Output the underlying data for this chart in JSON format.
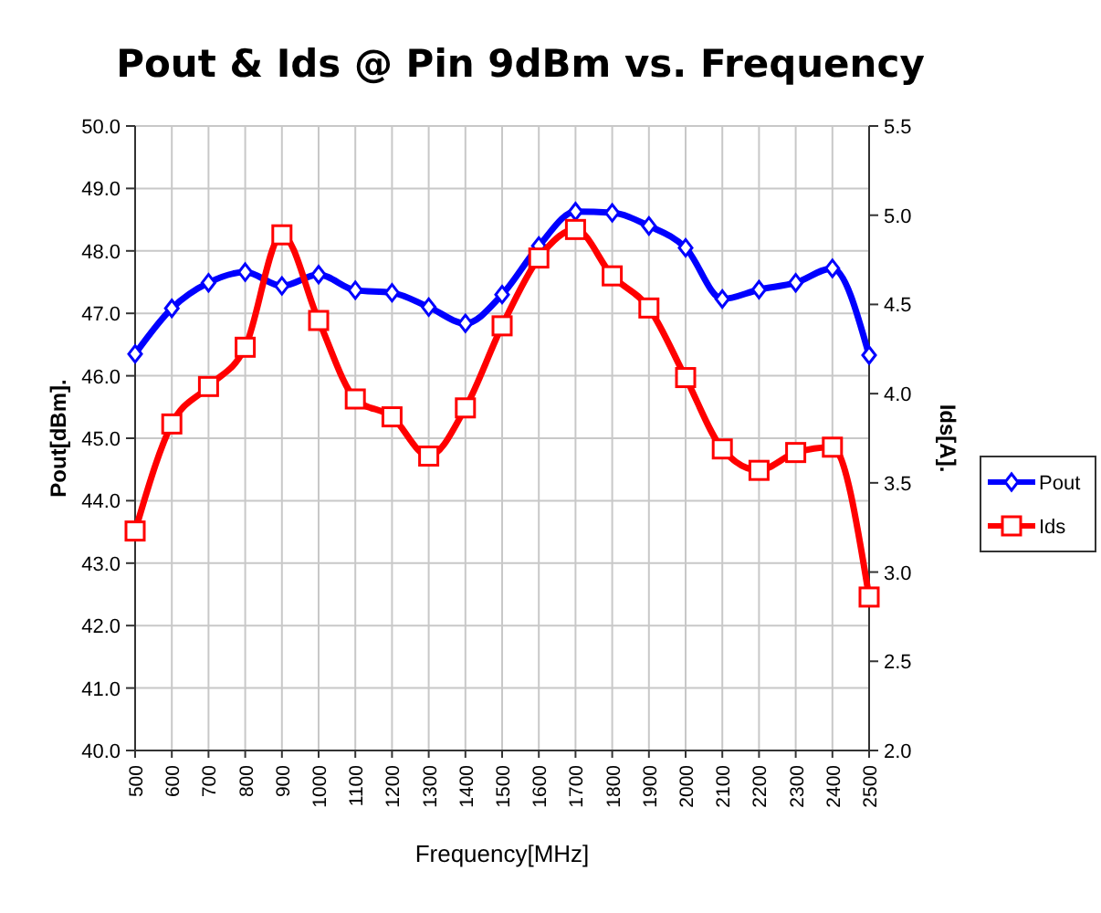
{
  "chart_data": {
    "type": "line",
    "title": "Pout & Ids @ Pin 9dBm vs. Frequency",
    "xlabel": "Frequency[MHz]",
    "ylabel": "Pout[dBm].",
    "y2label": "Ids[A].",
    "categories": [
      "500",
      "600",
      "700",
      "800",
      "900",
      "1000",
      "1100",
      "1200",
      "1300",
      "1400",
      "1500",
      "1600",
      "1700",
      "1800",
      "1900",
      "2000",
      "2100",
      "2200",
      "2300",
      "2400",
      "2500"
    ],
    "series": [
      {
        "name": "Pout",
        "color": "#0000ff",
        "marker": "diamond",
        "values": [
          46.35,
          47.08,
          47.49,
          47.66,
          47.44,
          47.62,
          47.37,
          47.33,
          47.1,
          46.84,
          47.3,
          48.08,
          48.63,
          48.61,
          48.4,
          48.05,
          47.23,
          47.38,
          47.49,
          47.72,
          46.33
        ]
      },
      {
        "name": "Ids",
        "color": "#ff0000",
        "marker": "square",
        "axis": "y2",
        "values": [
          3.23,
          3.83,
          4.04,
          4.26,
          4.89,
          4.41,
          3.97,
          3.87,
          3.65,
          3.92,
          4.38,
          4.76,
          4.92,
          4.66,
          4.48,
          4.09,
          3.69,
          3.57,
          3.67,
          3.7,
          2.86
        ]
      }
    ],
    "ylim": [
      40,
      50
    ],
    "yticks": [
      {
        "value": 40,
        "label": "40.0"
      },
      {
        "value": 41,
        "label": "41.0"
      },
      {
        "value": 42,
        "label": "42.0"
      },
      {
        "value": 43,
        "label": "43.0"
      },
      {
        "value": 44,
        "label": "44.0"
      },
      {
        "value": 45,
        "label": "45.0"
      },
      {
        "value": 46,
        "label": "46.0"
      },
      {
        "value": 47,
        "label": "47.0"
      },
      {
        "value": 48,
        "label": "48.0"
      },
      {
        "value": 49,
        "label": "49.0"
      },
      {
        "value": 50,
        "label": "50.0"
      }
    ],
    "y2lim": [
      2,
      5.5
    ],
    "y2ticks": [
      {
        "value": 2,
        "label": "2.0"
      },
      {
        "value": 2.5,
        "label": "2.5"
      },
      {
        "value": 3,
        "label": "3.0"
      },
      {
        "value": 3.5,
        "label": "3.5"
      },
      {
        "value": 4,
        "label": "4.0"
      },
      {
        "value": 4.5,
        "label": "4.5"
      },
      {
        "value": 5,
        "label": "5.0"
      },
      {
        "value": 5.5,
        "label": "5.5"
      }
    ],
    "grid": true,
    "legend": "right",
    "line_style": "solid"
  }
}
